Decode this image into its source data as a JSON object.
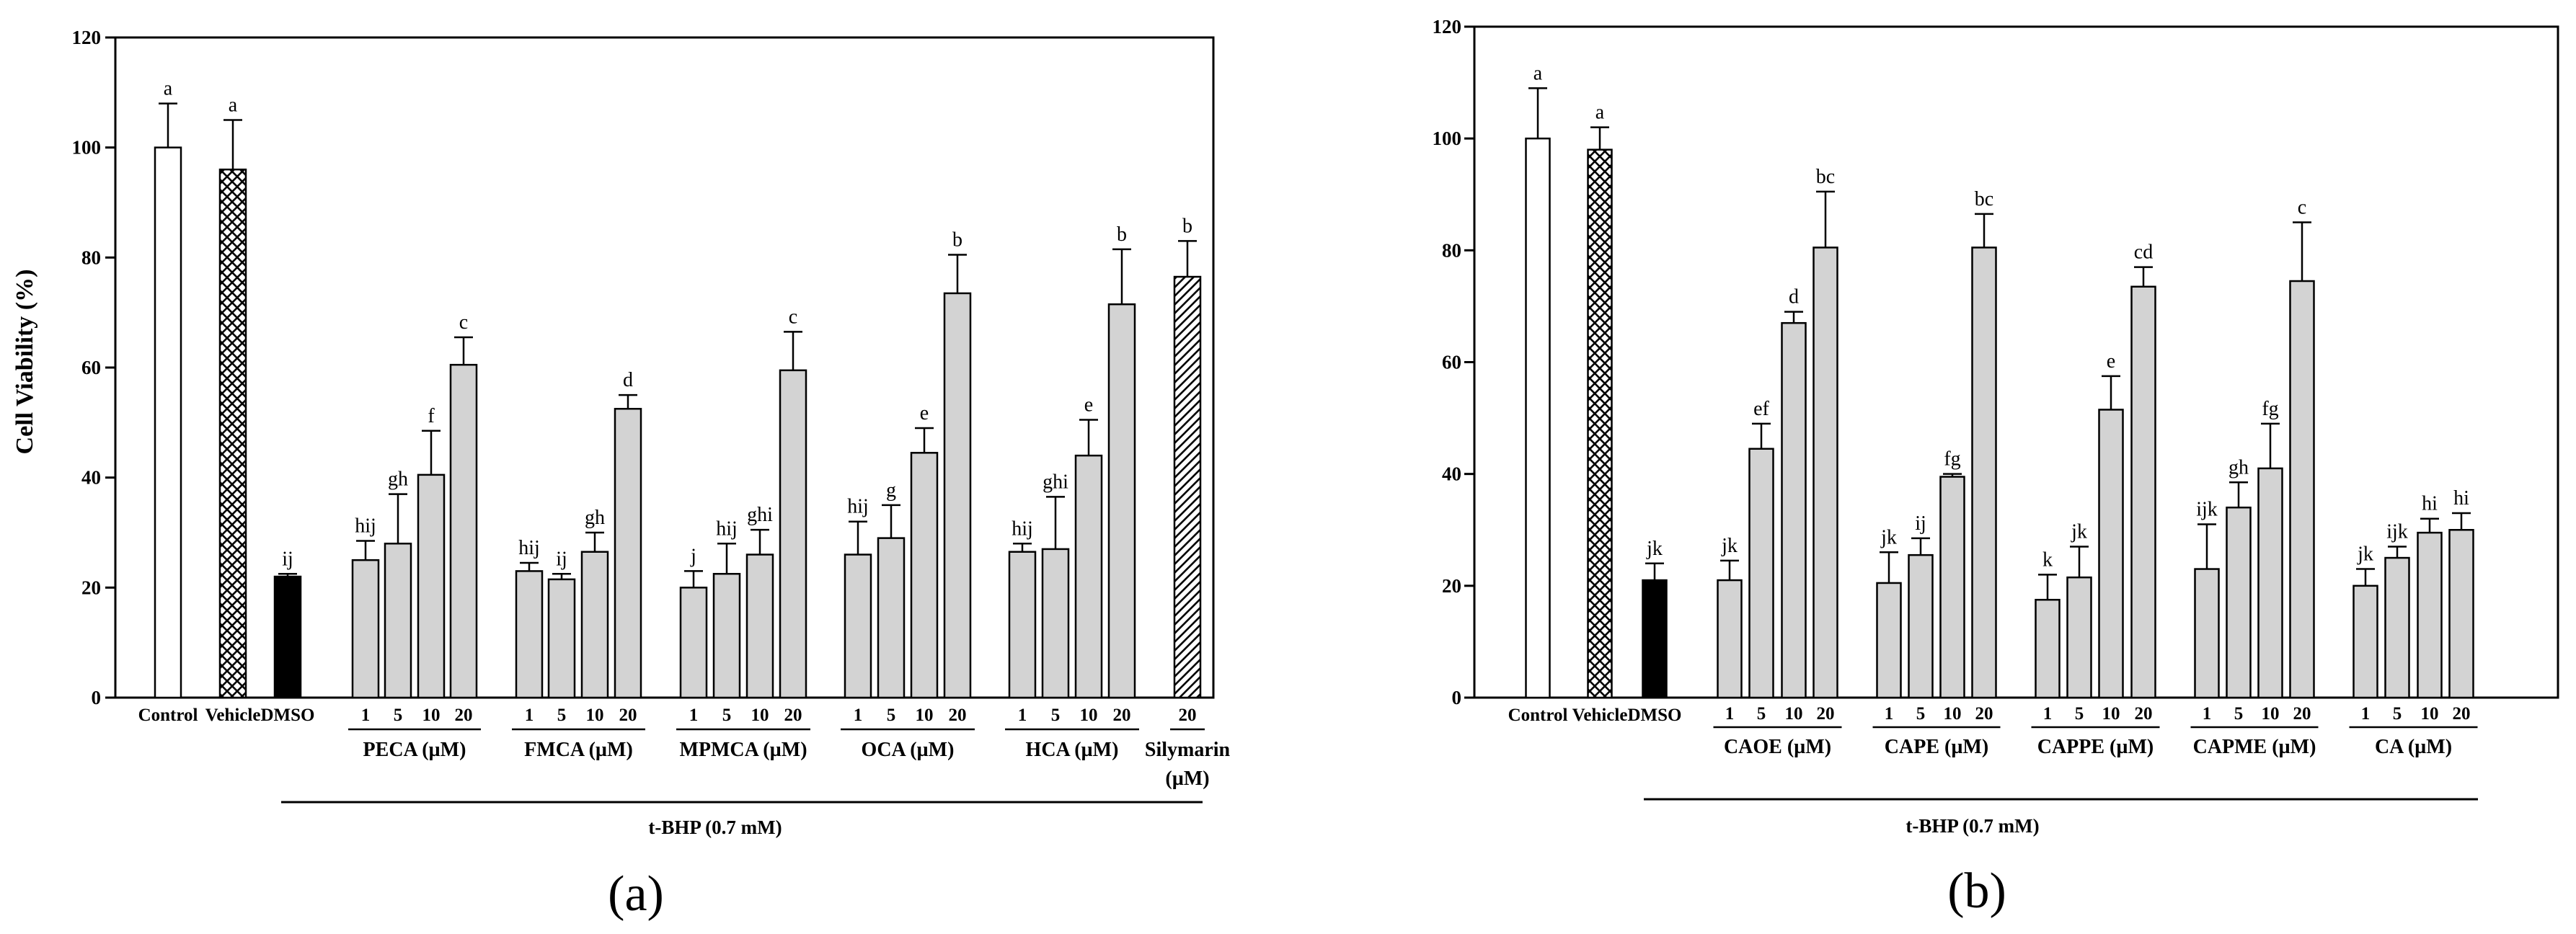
{
  "figure": {
    "panel_labels": [
      "(a)",
      "(b)"
    ],
    "colors": {
      "open": "#ffffff",
      "dmso": "#000000",
      "gray": "#d3d3d3",
      "outline": "#000000"
    }
  },
  "chart_data": [
    {
      "type": "bar",
      "panel": "(a)",
      "ylabel": "Cell Viability (%)",
      "ylim": [
        0,
        120
      ],
      "yticks": [
        0,
        20,
        40,
        60,
        80,
        100,
        120
      ],
      "treatment_label": "t-BHP (0.7 mM)",
      "bars": [
        {
          "group": "Control",
          "conc": "",
          "value": 100,
          "err": 8,
          "letter": "a",
          "fill": "open"
        },
        {
          "group": "Vehicle",
          "conc": "",
          "value": 96,
          "err": 9,
          "letter": "a",
          "fill": "crosshatch"
        },
        {
          "group": "DMSO",
          "conc": "",
          "value": 22,
          "err": 0.5,
          "letter": "ij",
          "fill": "dmso"
        },
        {
          "group": "PECA (µM)",
          "conc": "1",
          "value": 25,
          "err": 3.5,
          "letter": "hij",
          "fill": "gray"
        },
        {
          "group": "PECA (µM)",
          "conc": "5",
          "value": 28,
          "err": 9,
          "letter": "gh",
          "fill": "gray"
        },
        {
          "group": "PECA (µM)",
          "conc": "10",
          "value": 40.5,
          "err": 8,
          "letter": "f",
          "fill": "gray"
        },
        {
          "group": "PECA (µM)",
          "conc": "20",
          "value": 60.5,
          "err": 5,
          "letter": "c",
          "fill": "gray"
        },
        {
          "group": "FMCA (µM)",
          "conc": "1",
          "value": 23,
          "err": 1.5,
          "letter": "hij",
          "fill": "gray"
        },
        {
          "group": "FMCA (µM)",
          "conc": "5",
          "value": 21.5,
          "err": 1,
          "letter": "ij",
          "fill": "gray"
        },
        {
          "group": "FMCA (µM)",
          "conc": "10",
          "value": 26.5,
          "err": 3.5,
          "letter": "gh",
          "fill": "gray"
        },
        {
          "group": "FMCA (µM)",
          "conc": "20",
          "value": 52.5,
          "err": 2.5,
          "letter": "d",
          "fill": "gray"
        },
        {
          "group": "MPMCA (µM)",
          "conc": "1",
          "value": 20,
          "err": 3,
          "letter": "j",
          "fill": "gray"
        },
        {
          "group": "MPMCA (µM)",
          "conc": "5",
          "value": 22.5,
          "err": 5.5,
          "letter": "hij",
          "fill": "gray"
        },
        {
          "group": "MPMCA (µM)",
          "conc": "10",
          "value": 26,
          "err": 4.5,
          "letter": "ghi",
          "fill": "gray"
        },
        {
          "group": "MPMCA (µM)",
          "conc": "20",
          "value": 59.5,
          "err": 7,
          "letter": "c",
          "fill": "gray"
        },
        {
          "group": "OCA (µM)",
          "conc": "1",
          "value": 26,
          "err": 6,
          "letter": "hij",
          "fill": "gray"
        },
        {
          "group": "OCA (µM)",
          "conc": "5",
          "value": 29,
          "err": 6,
          "letter": "g",
          "fill": "gray"
        },
        {
          "group": "OCA (µM)",
          "conc": "10",
          "value": 44.5,
          "err": 4.5,
          "letter": "e",
          "fill": "gray"
        },
        {
          "group": "OCA (µM)",
          "conc": "20",
          "value": 73.5,
          "err": 7,
          "letter": "b",
          "fill": "gray"
        },
        {
          "group": "HCA (µM)",
          "conc": "1",
          "value": 26.5,
          "err": 1.5,
          "letter": "hij",
          "fill": "gray"
        },
        {
          "group": "HCA (µM)",
          "conc": "5",
          "value": 27,
          "err": 9.5,
          "letter": "ghi",
          "fill": "gray"
        },
        {
          "group": "HCA (µM)",
          "conc": "10",
          "value": 44,
          "err": 6.5,
          "letter": "e",
          "fill": "gray"
        },
        {
          "group": "HCA (µM)",
          "conc": "20",
          "value": 71.5,
          "err": 10,
          "letter": "b",
          "fill": "gray"
        },
        {
          "group": "Silymarin (µM)",
          "conc": "20",
          "value": 76.5,
          "err": 6.5,
          "letter": "b",
          "fill": "hatch"
        }
      ],
      "group_labels": [
        {
          "lines": [
            "PECA (µM)"
          ]
        },
        {
          "lines": [
            "FMCA (µM)"
          ]
        },
        {
          "lines": [
            "MPMCA (µM)"
          ]
        },
        {
          "lines": [
            "OCA (µM)"
          ]
        },
        {
          "lines": [
            "HCA (µM)"
          ]
        },
        {
          "lines": [
            "Silymarin",
            "(µM)"
          ]
        }
      ]
    },
    {
      "type": "bar",
      "panel": "(b)",
      "ylabel": "",
      "ylim": [
        0,
        120
      ],
      "yticks": [
        0,
        20,
        40,
        60,
        80,
        100,
        120
      ],
      "treatment_label": "t-BHP (0.7 mM)",
      "bars": [
        {
          "group": "Control",
          "conc": "",
          "value": 100,
          "err": 9,
          "letter": "a",
          "fill": "open"
        },
        {
          "group": "Vehicle",
          "conc": "",
          "value": 98,
          "err": 4,
          "letter": "a",
          "fill": "crosshatch"
        },
        {
          "group": "DMSO",
          "conc": "",
          "value": 21,
          "err": 3,
          "letter": "jk",
          "fill": "dmso"
        },
        {
          "group": "CAOE (µM)",
          "conc": "1",
          "value": 21,
          "err": 3.5,
          "letter": "jk",
          "fill": "gray"
        },
        {
          "group": "CAOE (µM)",
          "conc": "5",
          "value": 44.5,
          "err": 4.5,
          "letter": "ef",
          "fill": "gray"
        },
        {
          "group": "CAOE (µM)",
          "conc": "10",
          "value": 67,
          "err": 2,
          "letter": "d",
          "fill": "gray"
        },
        {
          "group": "CAOE (µM)",
          "conc": "20",
          "value": 80.5,
          "err": 10,
          "letter": "bc",
          "fill": "gray"
        },
        {
          "group": "CAPE (µM)",
          "conc": "1",
          "value": 20.5,
          "err": 5.5,
          "letter": "jk",
          "fill": "gray"
        },
        {
          "group": "CAPE (µM)",
          "conc": "5",
          "value": 25.5,
          "err": 3,
          "letter": "ij",
          "fill": "gray"
        },
        {
          "group": "CAPE (µM)",
          "conc": "10",
          "value": 39.5,
          "err": 0.5,
          "letter": "fg",
          "fill": "gray"
        },
        {
          "group": "CAPE (µM)",
          "conc": "20",
          "value": 80.5,
          "err": 6,
          "letter": "bc",
          "fill": "gray"
        },
        {
          "group": "CAPPE (µM)",
          "conc": "1",
          "value": 17.5,
          "err": 4.5,
          "letter": "k",
          "fill": "gray"
        },
        {
          "group": "CAPPE (µM)",
          "conc": "5",
          "value": 21.5,
          "err": 5.5,
          "letter": "jk",
          "fill": "gray"
        },
        {
          "group": "CAPPE (µM)",
          "conc": "10",
          "value": 51.5,
          "err": 6,
          "letter": "e",
          "fill": "gray"
        },
        {
          "group": "CAPPE (µM)",
          "conc": "20",
          "value": 73.5,
          "err": 3.5,
          "letter": "cd",
          "fill": "gray"
        },
        {
          "group": "CAPME (µM)",
          "conc": "1",
          "value": 23,
          "err": 8,
          "letter": "ijk",
          "fill": "gray"
        },
        {
          "group": "CAPME (µM)",
          "conc": "5",
          "value": 34,
          "err": 4.5,
          "letter": "gh",
          "fill": "gray"
        },
        {
          "group": "CAPME (µM)",
          "conc": "10",
          "value": 41,
          "err": 8,
          "letter": "fg",
          "fill": "gray"
        },
        {
          "group": "CAPME (µM)",
          "conc": "20",
          "value": 74.5,
          "err": 10.5,
          "letter": "c",
          "fill": "gray"
        },
        {
          "group": "CA (µM)",
          "conc": "1",
          "value": 20,
          "err": 3,
          "letter": "jk",
          "fill": "gray"
        },
        {
          "group": "CA (µM)",
          "conc": "5",
          "value": 25,
          "err": 2,
          "letter": "ijk",
          "fill": "gray"
        },
        {
          "group": "CA (µM)",
          "conc": "10",
          "value": 29.5,
          "err": 2.5,
          "letter": "hi",
          "fill": "gray"
        },
        {
          "group": "CA (µM)",
          "conc": "20",
          "value": 30,
          "err": 3,
          "letter": "hi",
          "fill": "gray"
        }
      ],
      "group_labels": [
        {
          "lines": [
            "CAOE (µM)"
          ]
        },
        {
          "lines": [
            "CAPE (µM)"
          ]
        },
        {
          "lines": [
            "CAPPE (µM)"
          ]
        },
        {
          "lines": [
            "CAPME (µM)"
          ]
        },
        {
          "lines": [
            "CA (µM)"
          ]
        }
      ]
    }
  ]
}
